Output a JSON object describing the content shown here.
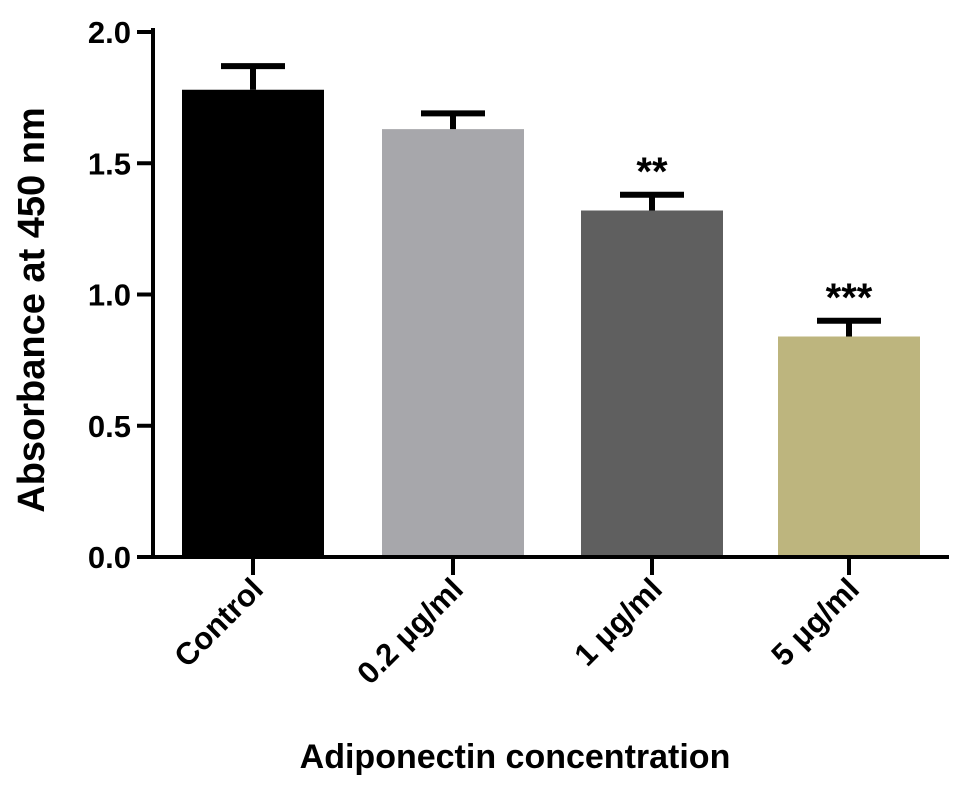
{
  "chart_data": {
    "type": "bar",
    "title": "",
    "xlabel": "Adiponectin concentration",
    "ylabel": "Absorbance at 450 nm",
    "ylim": [
      0,
      2.0
    ],
    "yticks": [
      "0.0",
      "0.5",
      "1.0",
      "1.5",
      "2.0"
    ],
    "categories": [
      "Control",
      "0.2 μg/ml",
      "1 μg/ml",
      "5 μg/ml"
    ],
    "values": [
      1.78,
      1.63,
      1.32,
      0.84
    ],
    "errors": [
      0.09,
      0.06,
      0.06,
      0.06
    ],
    "annotations": [
      "",
      "",
      "**",
      "***"
    ],
    "colors": [
      "#000000",
      "#a7a7ab",
      "#5f5f5f",
      "#bdb57e"
    ],
    "grid": false,
    "legend": "none"
  }
}
